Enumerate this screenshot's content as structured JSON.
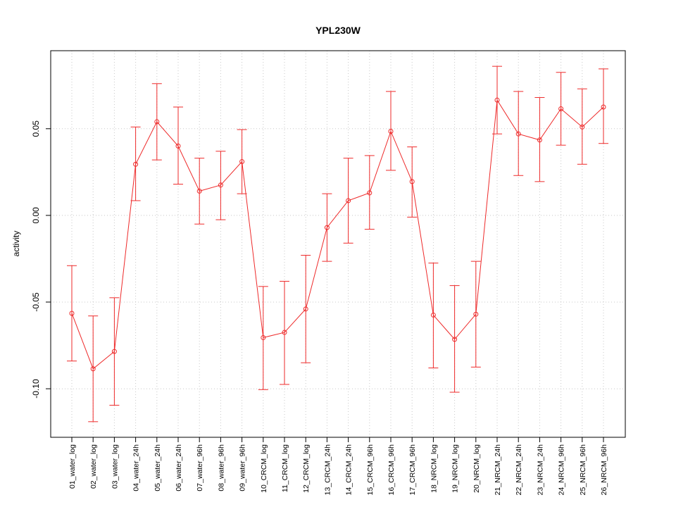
{
  "chart_data": {
    "type": "line",
    "title": "YPL230W",
    "xlabel": "",
    "ylabel": "activity",
    "ylim": [
      -0.128,
      0.095
    ],
    "yticks": [
      -0.1,
      -0.05,
      0.0,
      0.05
    ],
    "ytick_labels": [
      "-0.10",
      "-0.05",
      "0.00",
      "0.05"
    ],
    "grid": true,
    "colors": {
      "series": "#ee2a2a",
      "grid": "#c8c8c8",
      "frame": "#000000"
    },
    "categories": [
      "01_water_log",
      "02_water_log",
      "03_water_log",
      "04_water_24h",
      "05_water_24h",
      "06_water_24h",
      "07_water_96h",
      "08_water_96h",
      "09_water_96h",
      "10_CRCM_log",
      "11_CRCM_log",
      "12_CRCM_log",
      "13_CRCM_24h",
      "14_CRCM_24h",
      "15_CRCM_96h",
      "16_CRCM_96h",
      "17_CRCM_96h",
      "18_NRCM_log",
      "19_NRCM_log",
      "20_NRCM_log",
      "21_NRCM_24h",
      "22_NRCM_24h",
      "23_NRCM_24h",
      "24_NRCM_96h",
      "25_NRCM_96h",
      "26_NRCM_96h"
    ],
    "series": [
      {
        "values": [
          -0.0565,
          -0.0885,
          -0.0785,
          0.0295,
          0.054,
          0.04,
          0.014,
          0.0175,
          0.031,
          -0.0705,
          -0.0675,
          -0.054,
          -0.007,
          0.0085,
          0.013,
          0.0485,
          0.0195,
          -0.0575,
          -0.0715,
          -0.057,
          0.0665,
          0.047,
          0.0435,
          0.0615,
          0.051,
          0.0625
        ],
        "upper": [
          -0.029,
          -0.058,
          -0.0475,
          0.051,
          0.076,
          0.0625,
          0.033,
          0.037,
          0.0495,
          -0.041,
          -0.038,
          -0.023,
          0.0125,
          0.033,
          0.0345,
          0.0715,
          0.0395,
          -0.0275,
          -0.0405,
          -0.0265,
          0.086,
          0.0715,
          0.068,
          0.0825,
          0.073,
          0.0845
        ],
        "lower": [
          -0.084,
          -0.119,
          -0.1095,
          0.0085,
          0.032,
          0.018,
          -0.005,
          -0.0025,
          0.0125,
          -0.1005,
          -0.0975,
          -0.085,
          -0.0265,
          -0.016,
          -0.008,
          0.026,
          -0.001,
          -0.088,
          -0.102,
          -0.0875,
          0.047,
          0.023,
          0.0195,
          0.0405,
          0.0295,
          0.0415
        ]
      }
    ]
  }
}
